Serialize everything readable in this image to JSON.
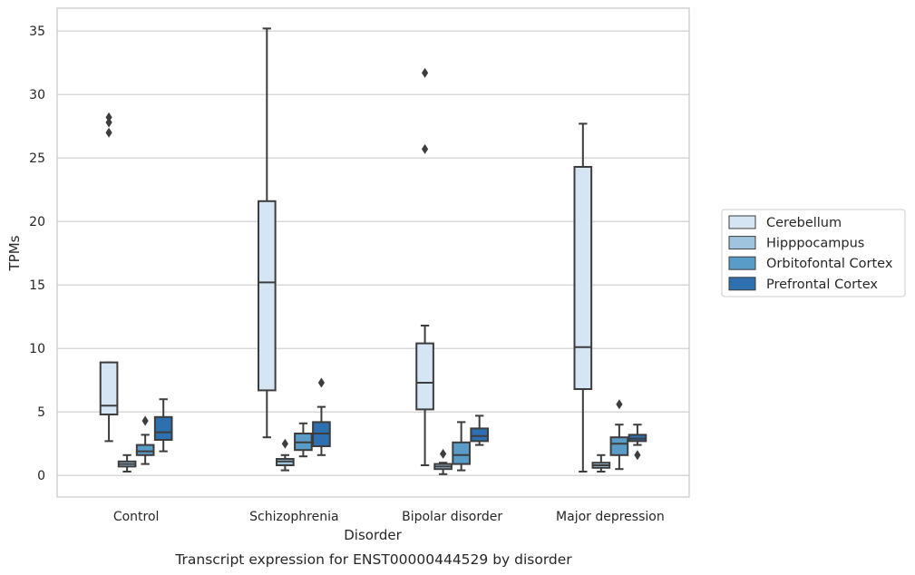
{
  "chart_data": {
    "type": "box",
    "title": "",
    "caption": "Transcript expression for ENST00000444529 by disorder",
    "xlabel": "Disorder",
    "ylabel": "TPMs",
    "ylim": [
      -1.7,
      36.8
    ],
    "yticks": [
      0,
      5,
      10,
      15,
      20,
      25,
      30,
      35
    ],
    "grid": "horizontal",
    "legend_position": "right",
    "categories": [
      "Control",
      "Schizophrenia",
      "Bipolar disorder",
      "Major depression"
    ],
    "series": [
      {
        "name": "Cerebellum",
        "color": "#d6e5f3",
        "boxes": [
          {
            "min": 2.7,
            "q1": 4.8,
            "median": 5.5,
            "q3": 8.9,
            "max": 8.9,
            "outliers": [
              27.0,
              27.8,
              28.2
            ]
          },
          {
            "min": 3.0,
            "q1": 6.7,
            "median": 15.2,
            "q3": 21.6,
            "max": 35.2,
            "outliers": []
          },
          {
            "min": 0.8,
            "q1": 5.2,
            "median": 7.3,
            "q3": 10.4,
            "max": 11.8,
            "outliers": [
              25.7,
              31.7
            ]
          },
          {
            "min": 0.3,
            "q1": 6.8,
            "median": 10.1,
            "q3": 24.3,
            "max": 27.7,
            "outliers": []
          }
        ]
      },
      {
        "name": "Hipppocampus",
        "color": "#9ec4de",
        "boxes": [
          {
            "min": 0.3,
            "q1": 0.7,
            "median": 0.9,
            "q3": 1.1,
            "max": 1.6,
            "outliers": []
          },
          {
            "min": 0.4,
            "q1": 0.8,
            "median": 1.1,
            "q3": 1.3,
            "max": 1.6,
            "outliers": [
              2.5
            ]
          },
          {
            "min": 0.1,
            "q1": 0.5,
            "median": 0.7,
            "q3": 0.9,
            "max": 1.0,
            "outliers": [
              1.7
            ]
          },
          {
            "min": 0.3,
            "q1": 0.6,
            "median": 0.8,
            "q3": 1.0,
            "max": 1.6,
            "outliers": []
          }
        ]
      },
      {
        "name": "Orbitofontal Cortex",
        "color": "#5a9cc8",
        "boxes": [
          {
            "min": 0.9,
            "q1": 1.6,
            "median": 1.9,
            "q3": 2.4,
            "max": 3.2,
            "outliers": [
              4.3
            ]
          },
          {
            "min": 1.5,
            "q1": 2.0,
            "median": 2.6,
            "q3": 3.3,
            "max": 4.1,
            "outliers": []
          },
          {
            "min": 0.4,
            "q1": 0.9,
            "median": 1.6,
            "q3": 2.6,
            "max": 4.2,
            "outliers": []
          },
          {
            "min": 0.5,
            "q1": 1.6,
            "median": 2.5,
            "q3": 3.0,
            "max": 4.0,
            "outliers": [
              5.6
            ]
          }
        ]
      },
      {
        "name": "Prefrontal Cortex",
        "color": "#2e6faf",
        "boxes": [
          {
            "min": 1.9,
            "q1": 2.8,
            "median": 3.4,
            "q3": 4.6,
            "max": 6.0,
            "outliers": []
          },
          {
            "min": 1.6,
            "q1": 2.3,
            "median": 3.3,
            "q3": 4.2,
            "max": 5.4,
            "outliers": [
              7.3
            ]
          },
          {
            "min": 2.4,
            "q1": 2.7,
            "median": 3.1,
            "q3": 3.7,
            "max": 4.7,
            "outliers": []
          },
          {
            "min": 2.4,
            "q1": 2.7,
            "median": 2.9,
            "q3": 3.2,
            "max": 4.0,
            "outliers": [
              1.6
            ]
          }
        ]
      }
    ],
    "colors": {
      "grid": "#cccccc",
      "frame": "#cccccc",
      "line": "#3d3d3d",
      "text": "#262626"
    }
  }
}
